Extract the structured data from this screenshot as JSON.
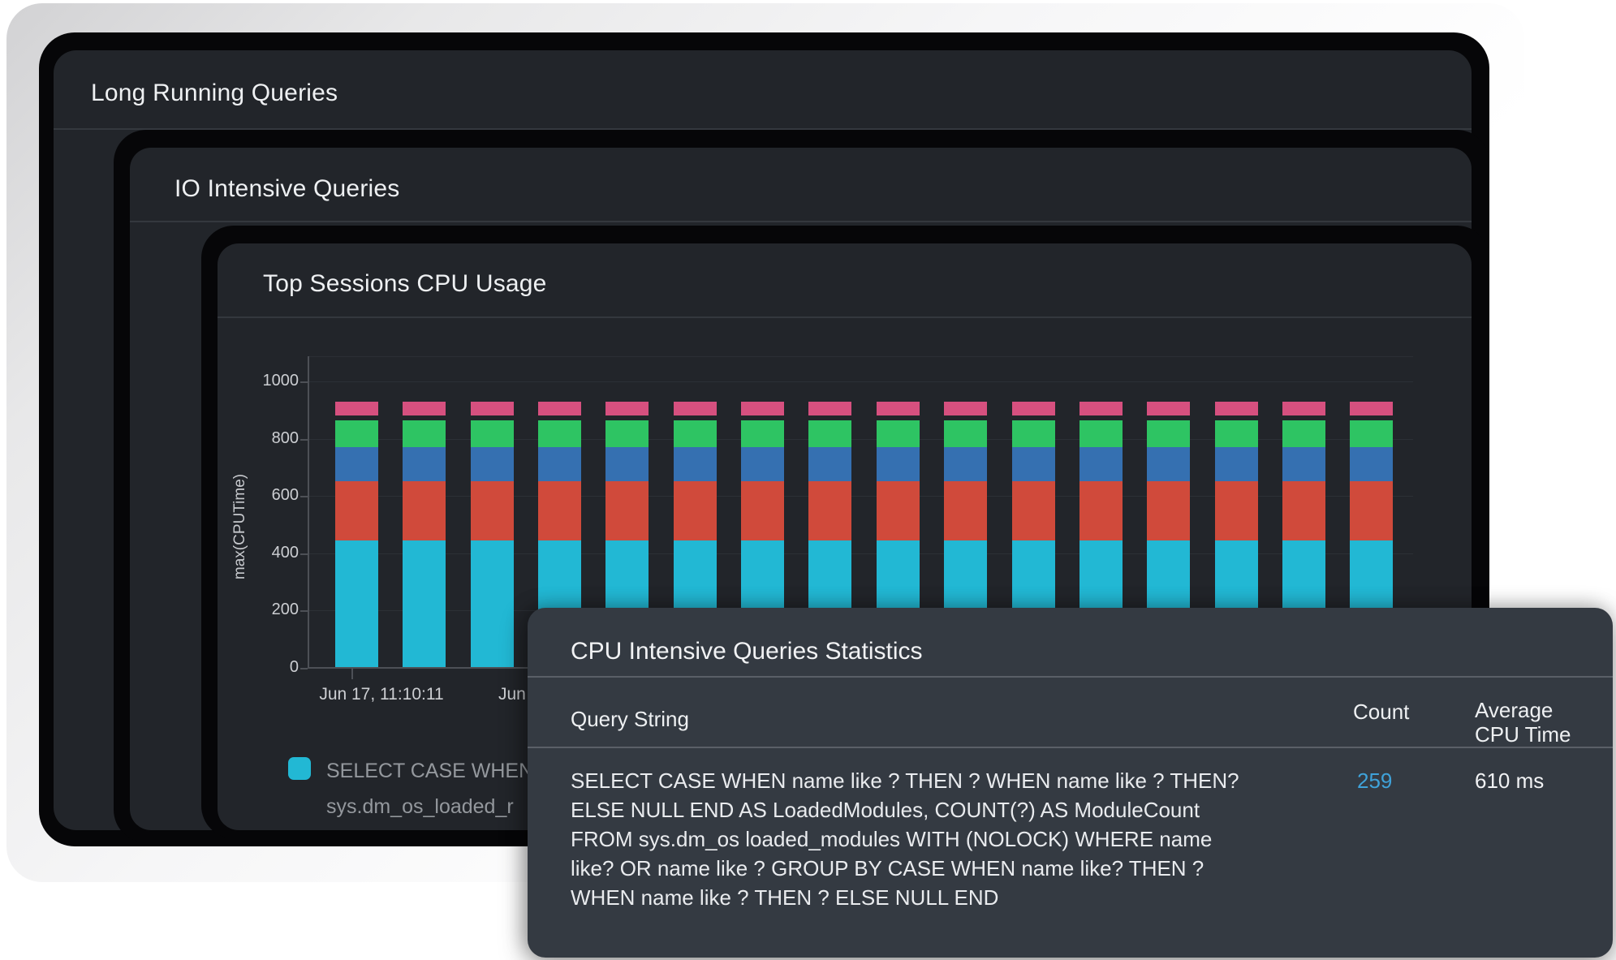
{
  "panels": {
    "long_running": {
      "title": "Long Running Queries"
    },
    "io_intensive": {
      "title": "IO Intensive Queries"
    },
    "top_sessions": {
      "title": "Top Sessions CPU Usage"
    }
  },
  "chart_data": {
    "type": "bar",
    "stacked": true,
    "title": "Top Sessions CPU Usage",
    "xlabel": "",
    "ylabel": "max(CPUTime)",
    "ylim": [
      0,
      1086
    ],
    "yticks": [
      0,
      200,
      400,
      600,
      800,
      1000
    ],
    "grid": true,
    "legend_position": "bottom-left",
    "bar_count": 16,
    "x_tick_labels_visible": [
      "Jun 17, 11:10:11",
      "Jun"
    ],
    "series": [
      {
        "name": "segment-cyan",
        "color": "#22b8d4",
        "from": 0,
        "to": 444
      },
      {
        "name": "segment-red",
        "color": "#d04a3b",
        "from": 444,
        "to": 651
      },
      {
        "name": "segment-blue",
        "color": "#3570b1",
        "from": 651,
        "to": 770
      },
      {
        "name": "segment-green",
        "color": "#2ec463",
        "from": 770,
        "to": 863
      },
      {
        "name": "segment-pink",
        "color": "#d6507f",
        "from": 880,
        "to": 928
      }
    ],
    "note_all_bars_equal": true
  },
  "legend": {
    "swatch_color": "#22b8d4",
    "line1": "SELECT CASE WHEN",
    "line2": "sys.dm_os_loaded_r"
  },
  "stats": {
    "title": "CPU Intensive Queries Statistics",
    "columns": {
      "query": "Query String",
      "count": "Count",
      "avg": "Average CPU Time"
    },
    "row": {
      "query_lines": [
        "SELECT CASE WHEN name like ? THEN ? WHEN name like ? THEN?",
        "ELSE NULL END AS LoadedModules, COUNT(?) AS ModuleCount",
        "FROM sys.dm_os loaded_modules WITH (NOLOCK) WHERE name",
        "like? OR name like ? GROUP BY CASE WHEN name like? THEN ?",
        "WHEN name like ? THEN ? ELSE NULL END"
      ],
      "count": "259",
      "count_color": "#3fa2d9",
      "avg_cpu_time": "610 ms"
    }
  },
  "theme": {
    "card_gradient_start": "#d2d2d4",
    "frame_black": "#060608",
    "panel_bg": "#22252a",
    "stats_bg": "#343a42",
    "divider_dark": "#34383e",
    "divider_light": "#5a5f67",
    "axis_color": "#4d5056",
    "tick_text": "#ccced2",
    "legend_text": "#94989d"
  }
}
